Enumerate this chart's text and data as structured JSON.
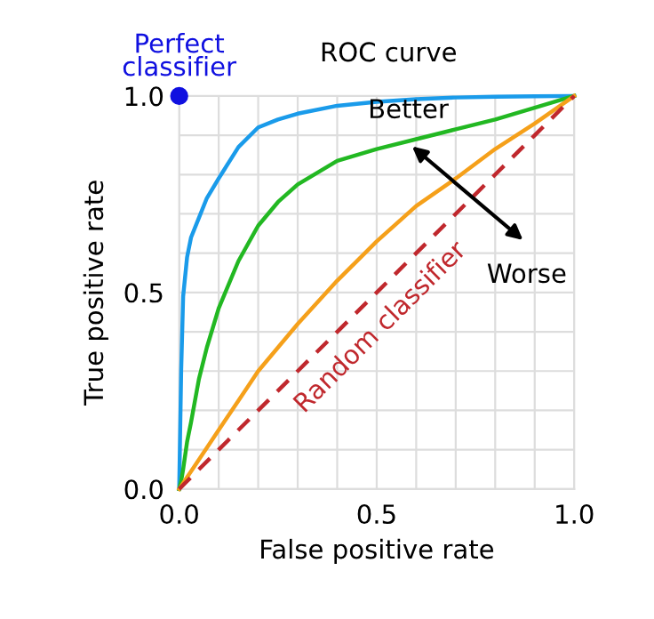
{
  "chart_data": {
    "type": "line",
    "title": "ROC curve",
    "xlabel": "False positive rate",
    "ylabel": "True positive rate",
    "x": [
      0,
      0.005,
      0.01,
      0.02,
      0.03,
      0.05,
      0.07,
      0.1,
      0.15,
      0.2,
      0.25,
      0.3,
      0.4,
      0.5,
      0.6,
      0.7,
      0.8,
      0.9,
      1.0
    ],
    "series": [
      {
        "color": "#1a9bea",
        "values": [
          0,
          0.3,
          0.49,
          0.59,
          0.64,
          0.69,
          0.74,
          0.79,
          0.87,
          0.92,
          0.94,
          0.955,
          0.975,
          0.985,
          0.992,
          0.996,
          0.998,
          0.999,
          1.0
        ]
      },
      {
        "color": "#22b822",
        "values": [
          0,
          0.02,
          0.05,
          0.12,
          0.17,
          0.28,
          0.36,
          0.46,
          0.58,
          0.67,
          0.73,
          0.775,
          0.835,
          0.865,
          0.89,
          0.915,
          0.94,
          0.97,
          1.0
        ]
      },
      {
        "color": "#f5a01a",
        "values": [
          0,
          0.007,
          0.015,
          0.03,
          0.045,
          0.075,
          0.105,
          0.15,
          0.225,
          0.3,
          0.36,
          0.42,
          0.53,
          0.63,
          0.72,
          0.79,
          0.865,
          0.93,
          1.0
        ]
      },
      {
        "name": "Random classifier",
        "color": "#c0282d",
        "line_style": "dashed",
        "values": [
          0,
          0.005,
          0.01,
          0.02,
          0.03,
          0.05,
          0.07,
          0.1,
          0.15,
          0.2,
          0.25,
          0.3,
          0.4,
          0.5,
          0.6,
          0.7,
          0.8,
          0.9,
          1.0
        ]
      },
      {
        "name": "Perfect classifier",
        "type": "scatter",
        "marker": "circle",
        "color": "#1010e0",
        "x": [
          0
        ],
        "values": [
          1
        ]
      }
    ],
    "annotations": [
      "Better",
      "Worse"
    ],
    "xlim": [
      0,
      1
    ],
    "ylim": [
      0,
      1
    ],
    "xticks": [
      {
        "value": 0.0,
        "label": "0.0"
      },
      {
        "value": 0.1,
        "label": null
      },
      {
        "value": 0.2,
        "label": null
      },
      {
        "value": 0.3,
        "label": null
      },
      {
        "value": 0.4,
        "label": null
      },
      {
        "value": 0.5,
        "label": "0.5"
      },
      {
        "value": 0.6,
        "label": null
      },
      {
        "value": 0.7,
        "label": null
      },
      {
        "value": 0.8,
        "label": null
      },
      {
        "value": 0.9,
        "label": null
      },
      {
        "value": 1.0,
        "label": "1.0"
      }
    ],
    "yticks": [
      {
        "value": 0.0,
        "label": "0.0"
      },
      {
        "value": 0.1,
        "label": null
      },
      {
        "value": 0.2,
        "label": null
      },
      {
        "value": 0.3,
        "label": null
      },
      {
        "value": 0.4,
        "label": null
      },
      {
        "value": 0.5,
        "label": "0.5"
      },
      {
        "value": 0.6,
        "label": null
      },
      {
        "value": 0.7,
        "label": null
      },
      {
        "value": 0.8,
        "label": null
      },
      {
        "value": 0.9,
        "label": null
      },
      {
        "value": 1.0,
        "label": "1.0"
      }
    ],
    "grid": true,
    "legend": false
  }
}
